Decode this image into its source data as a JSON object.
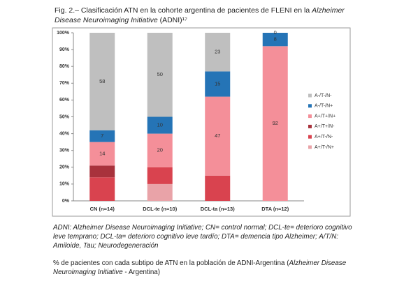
{
  "chart_data": {
    "type": "bar",
    "stacked": true,
    "title": [
      {
        "text": "Fig. 2.– Clasificación ATN en la cohorte argentina de pacientes de FLENI en la ",
        "italic": false
      },
      {
        "text": "Alzheimer Disease Neuroimaging Initiative",
        "italic": true
      },
      {
        "text": " (ADNI)¹⁷",
        "italic": false
      }
    ],
    "categories": [
      "CN (n=14)",
      "DCL-te (n=10)",
      "DCL-ta (n=13)",
      "DTA (n=12)"
    ],
    "series": [
      {
        "name": "A+/T-/N+",
        "color": "#e9a3a8",
        "values": [
          0,
          10,
          0,
          0
        ],
        "data_labels": false
      },
      {
        "name": "A+/T-/N-",
        "color": "#d9434f",
        "values": [
          14,
          10,
          15,
          0
        ],
        "data_labels": false
      },
      {
        "name": "A+/T+/N-",
        "color": "#a8323c",
        "values": [
          7,
          0,
          0,
          0
        ],
        "data_labels": false
      },
      {
        "name": "A+/T+/N+",
        "color": "#f48f99",
        "values": [
          14,
          20,
          47,
          92
        ],
        "data_labels": true
      },
      {
        "name": "A-/T-/N+",
        "color": "#2574b6",
        "values": [
          7,
          10,
          15,
          8
        ],
        "data_labels": true
      },
      {
        "name": "A-/T-/N-",
        "color": "#bfbfbf",
        "values": [
          58,
          50,
          23,
          0
        ],
        "data_labels": true
      }
    ],
    "ylim": [
      0,
      100
    ],
    "yticks": [
      {
        "value": 0,
        "label": "0%"
      },
      {
        "value": 10,
        "label": "10%"
      },
      {
        "value": 20,
        "label": "20%"
      },
      {
        "value": 30,
        "label": "30%"
      },
      {
        "value": 40,
        "label": "40%"
      },
      {
        "value": 50,
        "label": "50%"
      },
      {
        "value": 60,
        "label": "60%"
      },
      {
        "value": 70,
        "label": "70%"
      },
      {
        "value": 80,
        "label": "80%"
      },
      {
        "value": 90,
        "label": "90%"
      },
      {
        "value": 100,
        "label": "100%"
      }
    ],
    "grid": false,
    "legend": "right"
  },
  "notes": [
    [
      {
        "text": "ADNI: Alzheimer Disease Neuroimaging Initiative; CN= control normal; DCL-te= deterioro cognitivo leve temprano; DCL-ta= deterioro cognitivo leve tardío; DTA= demencia tipo Alzheimer; A/T/N: Amiloide, Tau; Neurodegeneración",
        "italic": true
      }
    ],
    [
      {
        "text": "% de pacientes con cada subtipo de ATN en la población de ADNI-Argentina (",
        "italic": false
      },
      {
        "text": "Alzheimer Disease Neuroimaging Initiative",
        "italic": true
      },
      {
        "text": " - Argentina)",
        "italic": false
      }
    ]
  ]
}
